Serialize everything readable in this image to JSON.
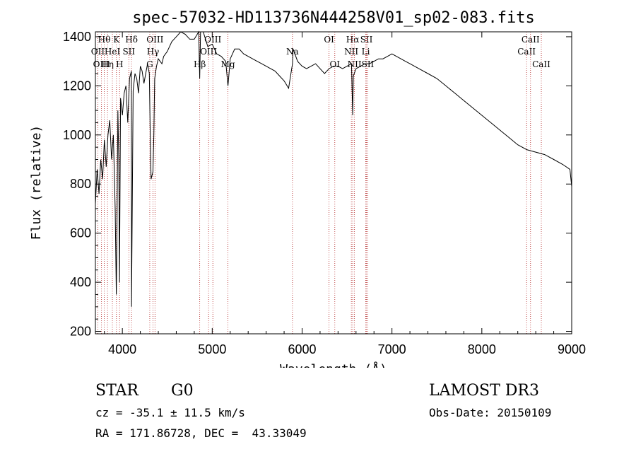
{
  "chart_data": {
    "type": "line",
    "title": "spec-57032-HD113736N444258V01_sp02-083.fits",
    "xlabel": "Wavelength (Å)",
    "ylabel": "Flux (relative)",
    "xlim": [
      3700,
      9000
    ],
    "ylim": [
      190,
      1420
    ],
    "x_ticks": [
      4000,
      5000,
      6000,
      7000,
      8000,
      9000
    ],
    "y_ticks": [
      200,
      400,
      600,
      800,
      1000,
      1200,
      1400
    ],
    "grid": false,
    "legend": "none",
    "series": [
      {
        "name": "flux",
        "x": [
          3700,
          3720,
          3740,
          3760,
          3780,
          3800,
          3820,
          3840,
          3860,
          3880,
          3900,
          3920,
          3933,
          3940,
          3950,
          3960,
          3968,
          3980,
          4000,
          4020,
          4040,
          4060,
          4080,
          4100,
          4102,
          4120,
          4140,
          4160,
          4180,
          4200,
          4220,
          4240,
          4260,
          4280,
          4300,
          4310,
          4320,
          4340,
          4350,
          4360,
          4380,
          4400,
          4420,
          4440,
          4460,
          4480,
          4500,
          4550,
          4600,
          4650,
          4700,
          4750,
          4800,
          4850,
          4861,
          4870,
          4900,
          4950,
          5000,
          5050,
          5100,
          5150,
          5175,
          5200,
          5250,
          5300,
          5350,
          5400,
          5450,
          5500,
          5550,
          5600,
          5650,
          5700,
          5750,
          5800,
          5850,
          5893,
          5900,
          5950,
          6000,
          6050,
          6100,
          6150,
          6200,
          6250,
          6300,
          6350,
          6400,
          6450,
          6500,
          6550,
          6563,
          6570,
          6600,
          6650,
          6700,
          6750,
          6800,
          6850,
          6900,
          6950,
          7000,
          7050,
          7100,
          7150,
          7200,
          7300,
          7400,
          7500,
          7600,
          7700,
          7800,
          7900,
          8000,
          8100,
          8200,
          8300,
          8400,
          8500,
          8600,
          8700,
          8800,
          8900,
          8980,
          9000
        ],
        "values": [
          720,
          860,
          760,
          900,
          820,
          980,
          870,
          1000,
          1060,
          900,
          1000,
          700,
          350,
          600,
          1100,
          900,
          400,
          1150,
          1080,
          1170,
          1200,
          1050,
          1230,
          1260,
          300,
          1180,
          1250,
          1230,
          1170,
          1280,
          1260,
          1210,
          1250,
          1290,
          1250,
          1000,
          820,
          850,
          1000,
          1230,
          1280,
          1310,
          1300,
          1290,
          1320,
          1330,
          1340,
          1380,
          1400,
          1420,
          1410,
          1390,
          1390,
          1420,
          1230,
          1420,
          1420,
          1360,
          1370,
          1330,
          1320,
          1300,
          1200,
          1310,
          1350,
          1350,
          1330,
          1320,
          1310,
          1300,
          1290,
          1280,
          1270,
          1260,
          1240,
          1220,
          1190,
          1290,
          1350,
          1300,
          1280,
          1270,
          1280,
          1290,
          1270,
          1250,
          1270,
          1280,
          1280,
          1270,
          1280,
          1290,
          1080,
          1240,
          1270,
          1280,
          1290,
          1290,
          1300,
          1310,
          1310,
          1320,
          1330,
          1320,
          1310,
          1300,
          1290,
          1270,
          1250,
          1230,
          1200,
          1170,
          1140,
          1110,
          1080,
          1050,
          1020,
          990,
          960,
          940,
          930,
          920,
          900,
          880,
          860,
          790
        ]
      }
    ],
    "line_markers": [
      {
        "label": "Hθ",
        "x": 3798,
        "row": 1
      },
      {
        "label": "OII",
        "x": 3727,
        "row": 2
      },
      {
        "label": "OIII",
        "x": 3768,
        "row": 3
      },
      {
        "label": "Hη",
        "x": 3835,
        "row": 3
      },
      {
        "label": "HeI",
        "x": 3889,
        "row": 2
      },
      {
        "label": "K",
        "x": 3934,
        "row": 1
      },
      {
        "label": "H",
        "x": 3969,
        "row": 3
      },
      {
        "label": "SII",
        "x": 4072,
        "row": 2
      },
      {
        "label": "Hδ",
        "x": 4102,
        "row": 1
      },
      {
        "label": "OIII",
        "x": 4363,
        "row": 1
      },
      {
        "label": "Hγ",
        "x": 4341,
        "row": 2
      },
      {
        "label": "G",
        "x": 4305,
        "row": 3
      },
      {
        "label": "Hβ",
        "x": 4861,
        "row": 3
      },
      {
        "label": "OIII",
        "x": 4959,
        "row": 2
      },
      {
        "label": "OIII",
        "x": 5007,
        "row": 1
      },
      {
        "label": "Mg",
        "x": 5175,
        "row": 3
      },
      {
        "label": "Na",
        "x": 5893,
        "row": 2
      },
      {
        "label": "OI",
        "x": 6300,
        "row": 1
      },
      {
        "label": "OI",
        "x": 6364,
        "row": 3
      },
      {
        "label": "Hα",
        "x": 6563,
        "row": 1
      },
      {
        "label": "NII",
        "x": 6548,
        "row": 2
      },
      {
        "label": "NII",
        "x": 6583,
        "row": 3
      },
      {
        "label": "SII",
        "x": 6716,
        "row": 1
      },
      {
        "label": "Li",
        "x": 6708,
        "row": 2
      },
      {
        "label": "SII",
        "x": 6731,
        "row": 3
      },
      {
        "label": "CaII",
        "x": 8498,
        "row": 2
      },
      {
        "label": "CaII",
        "x": 8542,
        "row": 1
      },
      {
        "label": "CaII",
        "x": 8662,
        "row": 3
      }
    ]
  },
  "info": {
    "object_class": "STAR",
    "subclass": "G0",
    "survey": "LAMOST DR3",
    "cz": "cz = -35.1 ± 11.5 km/s",
    "obs_date": "Obs-Date: 20150109",
    "coords": "RA = 171.86728, DEC =  43.33049"
  }
}
